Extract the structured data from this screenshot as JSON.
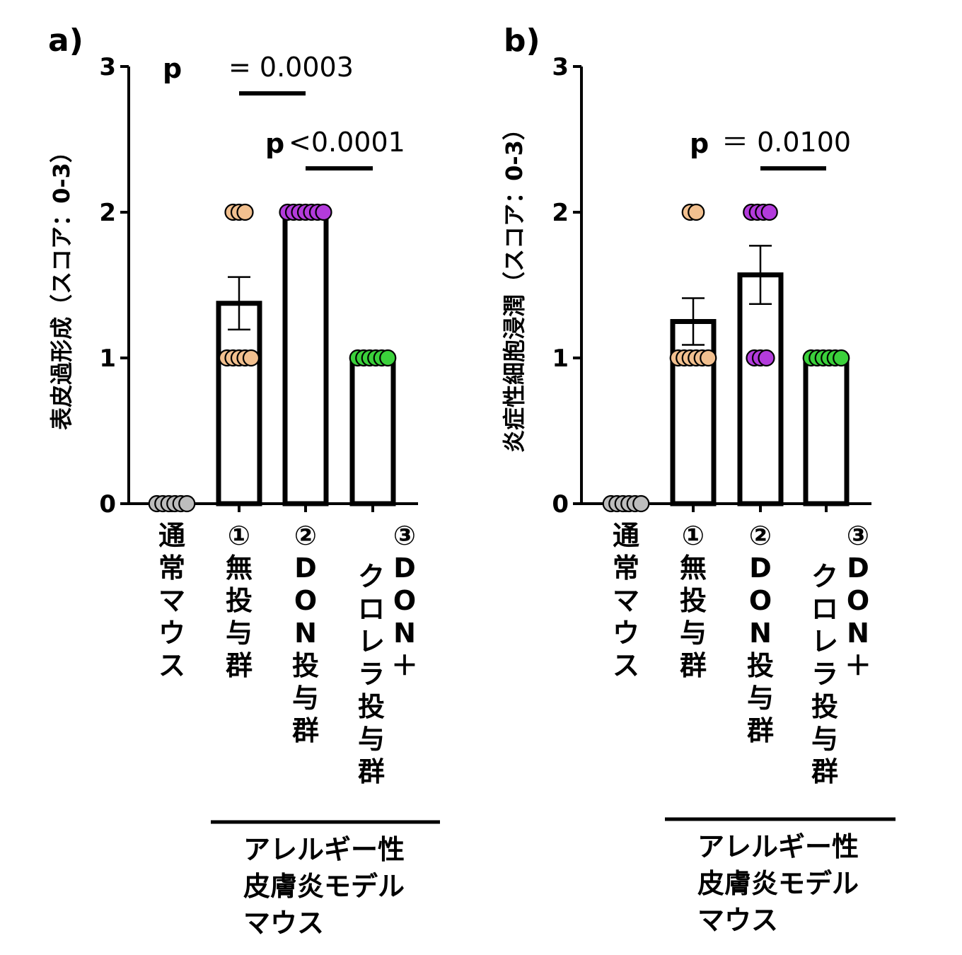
{
  "charts": [
    {
      "panel": "a)",
      "ylabel": "表皮過形成（スコア：0-3）",
      "ylim": [
        0,
        3
      ],
      "yticks": [
        "0",
        "1",
        "2",
        "3"
      ],
      "categories": [
        "通常マウス",
        "①無投与群",
        "②DON投与群",
        "③DON＋\nクロレラ投与群"
      ],
      "group_label": "アレルギー性\n皮膚炎モデル\nマウス",
      "pvalues": [
        {
          "p": "p",
          "text": "=  0.0003"
        },
        {
          "p": "p",
          "text": "<0.0001"
        }
      ],
      "chart_data": {
        "type": "bar",
        "means": [
          0,
          1.375,
          2.0,
          1.0
        ],
        "sem": [
          0,
          0.18,
          0,
          0
        ],
        "points": [
          [
            0,
            0,
            0,
            0,
            0,
            0
          ],
          [
            2,
            2,
            2,
            1,
            1,
            1,
            1,
            1
          ],
          [
            2,
            2,
            2,
            2,
            2,
            2,
            2
          ],
          [
            1,
            1,
            1,
            1,
            1,
            1
          ]
        ]
      }
    },
    {
      "panel": "b)",
      "ylabel": "炎症性細胞浸潤（スコア：0-3）",
      "ylim": [
        0,
        3
      ],
      "yticks": [
        "0",
        "1",
        "2",
        "3"
      ],
      "categories": [
        "通常マウス",
        "①無投与群",
        "②DON投与群",
        "③DON＋\nクロレラ投与群"
      ],
      "group_label": "アレルギー性\n皮膚炎モデル\nマウス",
      "pvalues": [
        {
          "p": "p",
          "text": "＝  0.0100"
        }
      ],
      "chart_data": {
        "type": "bar",
        "means": [
          0,
          1.25,
          1.57,
          1.0
        ],
        "sem": [
          0,
          0.16,
          0.2,
          0
        ],
        "points": [
          [
            0,
            0,
            0,
            0,
            0,
            0
          ],
          [
            2,
            2,
            1,
            1,
            1,
            1,
            1,
            1
          ],
          [
            2,
            2,
            2,
            2,
            1,
            1,
            1
          ],
          [
            1,
            1,
            1,
            1,
            1,
            1
          ]
        ]
      }
    }
  ],
  "colors": {
    "normal": "#bdbdbd",
    "untreated": "#f2c08f",
    "don": "#b33bdc",
    "chlorella": "#3bd13b",
    "axis": "#000000"
  }
}
